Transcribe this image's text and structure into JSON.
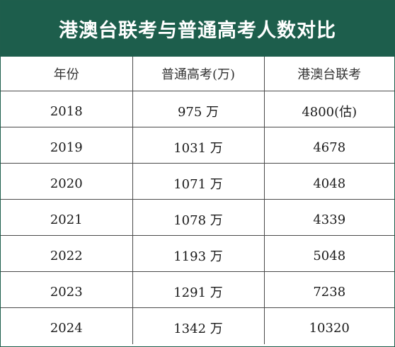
{
  "title": "港澳台联考与普通高考人数对比",
  "columns": [
    "年份",
    "普通高考(万)",
    "港澳台联考"
  ],
  "rows": [
    {
      "year": "2018",
      "gaokao": "975 万",
      "joint_exam": "4800(估)"
    },
    {
      "year": "2019",
      "gaokao": "1031 万",
      "joint_exam": "4678"
    },
    {
      "year": "2020",
      "gaokao": "1071 万",
      "joint_exam": "4048"
    },
    {
      "year": "2021",
      "gaokao": "1078 万",
      "joint_exam": "4339"
    },
    {
      "year": "2022",
      "gaokao": "1193 万",
      "joint_exam": "5048"
    },
    {
      "year": "2023",
      "gaokao": "1291 万",
      "joint_exam": "7238"
    },
    {
      "year": "2024",
      "gaokao": "1342 万",
      "joint_exam": "10320"
    }
  ],
  "colors": {
    "header_bg": "#1d5e4c",
    "header_text": "#ffffff",
    "grid_lines": "#4a4a4a"
  }
}
